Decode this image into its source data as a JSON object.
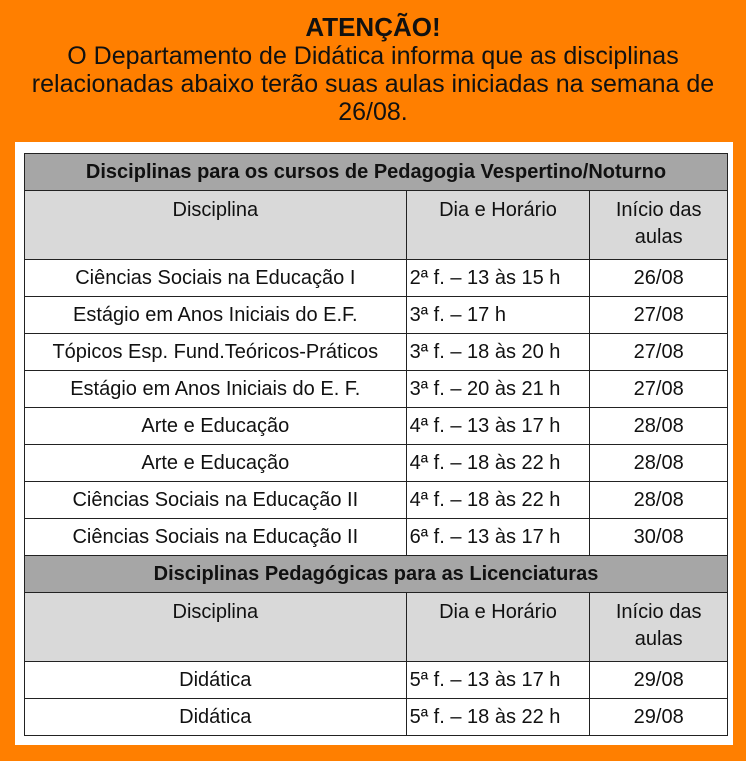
{
  "notice": {
    "title": "ATENÇÃO!",
    "text": "O Departamento de Didática informa que as disciplinas relacionadas abaixo terão suas aulas iniciadas na semana de 26/08."
  },
  "columns": [
    "Disciplina",
    "Dia e Horário",
    "Início das aulas"
  ],
  "sections": [
    {
      "title": "Disciplinas para os cursos de Pedagogia Vespertino/Noturno",
      "rows": [
        [
          "Ciências Sociais na Educação I",
          "2ª f. – 13 às 15 h",
          "26/08"
        ],
        [
          "Estágio em Anos Iniciais do E.F.",
          "3ª f. – 17 h",
          "27/08"
        ],
        [
          "Tópicos Esp. Fund.Teóricos-Práticos",
          "3ª f. – 18 às 20 h",
          "27/08"
        ],
        [
          "Estágio em Anos Iniciais do E. F.",
          "3ª f. – 20 às 21 h",
          "27/08"
        ],
        [
          "Arte e Educação",
          "4ª f. – 13 às 17 h",
          "28/08"
        ],
        [
          "Arte e Educação",
          "4ª f. – 18 às 22 h",
          "28/08"
        ],
        [
          "Ciências Sociais na Educação II",
          "4ª f. – 18 às 22 h",
          "28/08"
        ],
        [
          "Ciências Sociais na Educação II",
          "6ª f. – 13 às 17 h",
          "30/08"
        ]
      ]
    },
    {
      "title": "Disciplinas Pedagógicas para as Licenciaturas",
      "rows": [
        [
          "Didática",
          "5ª f. – 13 às 17 h",
          "29/08"
        ],
        [
          "Didática",
          "5ª f. – 18 às 22 h",
          "29/08"
        ]
      ]
    }
  ]
}
